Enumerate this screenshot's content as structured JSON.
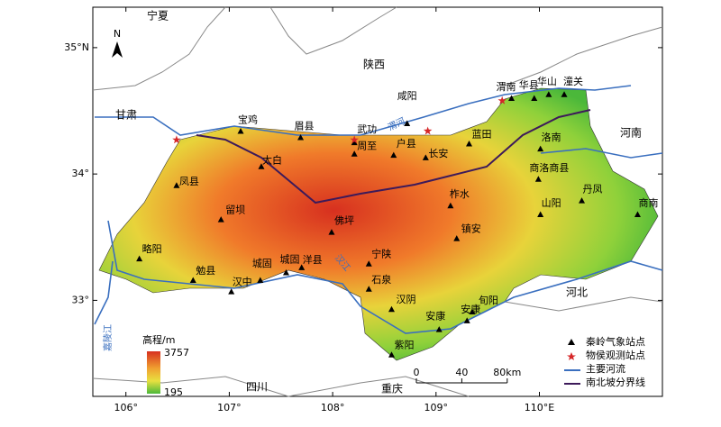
{
  "map": {
    "lon_range": [
      105.68,
      111.19
    ],
    "lat_range": [
      32.24,
      35.32
    ],
    "lon_ticks": [
      {
        "value": 106,
        "label": "106°"
      },
      {
        "value": 107,
        "label": "107°"
      },
      {
        "value": 108,
        "label": "108°"
      },
      {
        "value": 109,
        "label": "109°"
      },
      {
        "value": 110,
        "label": "110°E"
      }
    ],
    "lat_ticks": [
      {
        "value": 33,
        "label": "33°"
      },
      {
        "value": 34,
        "label": "34°"
      },
      {
        "value": 35,
        "label": "35°N"
      }
    ],
    "north_arrow": "N",
    "regions": [
      "宁夏",
      "陕西",
      "甘肃",
      "河南",
      "河北",
      "四川",
      "重庆"
    ],
    "rivers": [
      "渭河",
      "汉江",
      "嘉陵江"
    ],
    "stations": [
      {
        "name": "宝鸡",
        "lon": 107.11,
        "lat": 34.34
      },
      {
        "name": "眉县",
        "lon": 107.69,
        "lat": 34.29
      },
      {
        "name": "武功",
        "lon": 108.21,
        "lat": 34.25
      },
      {
        "name": "周至",
        "lon": 108.21,
        "lat": 34.16
      },
      {
        "name": "户县",
        "lon": 108.59,
        "lat": 34.15
      },
      {
        "name": "咸阳",
        "lon": 108.72,
        "lat": 34.4
      },
      {
        "name": "长安",
        "lon": 108.9,
        "lat": 34.13
      },
      {
        "name": "蓝田",
        "lon": 109.32,
        "lat": 34.24
      },
      {
        "name": "渭南",
        "lon": 109.73,
        "lat": 34.6
      },
      {
        "name": "华县",
        "lon": 109.95,
        "lat": 34.6
      },
      {
        "name": "华山",
        "lon": 110.09,
        "lat": 34.63
      },
      {
        "name": "潼关",
        "lon": 110.24,
        "lat": 34.63
      },
      {
        "name": "太白",
        "lon": 107.31,
        "lat": 34.06
      },
      {
        "name": "凤县",
        "lon": 106.49,
        "lat": 33.91
      },
      {
        "name": "洛南",
        "lon": 110.01,
        "lat": 34.2
      },
      {
        "name": "商洛商县",
        "lon": 109.99,
        "lat": 33.96
      },
      {
        "name": "丹凤",
        "lon": 110.41,
        "lat": 33.79
      },
      {
        "name": "商南",
        "lon": 110.95,
        "lat": 33.68
      },
      {
        "name": "山阳",
        "lon": 110.01,
        "lat": 33.68
      },
      {
        "name": "柞水",
        "lon": 109.14,
        "lat": 33.75
      },
      {
        "name": "镇安",
        "lon": 109.2,
        "lat": 33.49
      },
      {
        "name": "佛坪",
        "lon": 107.99,
        "lat": 33.54
      },
      {
        "name": "留坝",
        "lon": 106.92,
        "lat": 33.64
      },
      {
        "name": "略阳",
        "lon": 106.13,
        "lat": 33.33
      },
      {
        "name": "勉县",
        "lon": 106.65,
        "lat": 33.16
      },
      {
        "name": "汉中",
        "lon": 107.02,
        "lat": 33.07
      },
      {
        "name": "城固",
        "lon": 107.3,
        "lat": 33.16
      },
      {
        "name": "城固",
        "lon": 107.55,
        "lat": 33.22
      },
      {
        "name": "洋县",
        "lon": 107.7,
        "lat": 33.26
      },
      {
        "name": "宁陕",
        "lon": 108.35,
        "lat": 33.29
      },
      {
        "name": "石泉",
        "lon": 108.35,
        "lat": 33.09
      },
      {
        "name": "汉阴",
        "lon": 108.57,
        "lat": 32.93
      },
      {
        "name": "安康",
        "lon": 109.03,
        "lat": 32.77
      },
      {
        "name": "安康",
        "lon": 109.3,
        "lat": 32.84
      },
      {
        "name": "旬阳",
        "lon": 109.35,
        "lat": 32.91
      },
      {
        "name": "紫阳",
        "lon": 108.57,
        "lat": 32.57
      }
    ],
    "observation_sites": [
      {
        "lon": 106.49,
        "lat": 34.27
      },
      {
        "lon": 108.21,
        "lat": 34.27
      },
      {
        "lon": 108.92,
        "lat": 34.34
      },
      {
        "lon": 109.64,
        "lat": 34.58
      }
    ],
    "elevation": {
      "title": "高程/m",
      "max": 3757,
      "min": 195
    },
    "legend": [
      "秦岭气象站点",
      "物侯观测站点",
      "主要河流",
      "南北坡分界线"
    ],
    "scale_bar": [
      0,
      40,
      {
        "value": 80,
        "label": "80km"
      }
    ]
  }
}
